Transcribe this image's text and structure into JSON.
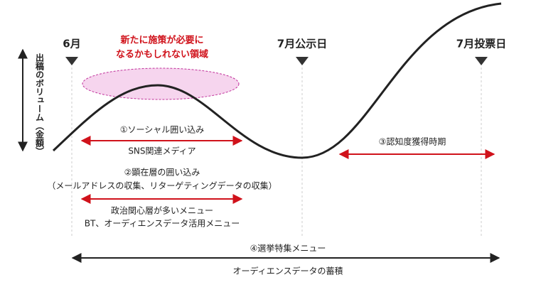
{
  "markers": [
    {
      "label": "6月"
    },
    {
      "label": "7月公示日"
    },
    {
      "label": "7月投票日"
    }
  ],
  "y_axis_label": "出稿のボリューム（金額）",
  "annotation": {
    "lines": [
      "新たに施策が必要に",
      "なるかもしれない領域"
    ]
  },
  "phases": [
    {
      "title": "①ソーシャル囲い込み",
      "detail": "SNS関連メディア"
    },
    {
      "title": "②顕在層の囲い込み",
      "subtitle": "（メールアドレスの収集、リターゲティングデータの収集）",
      "details": [
        "政治関心層が多いメニュー",
        "BT、オーディエンスデータ活用メニュー"
      ]
    },
    {
      "title": "③認知度獲得時期"
    },
    {
      "title": "④選挙特集メニュー",
      "detail": "オーディエンスデータの蓄積"
    }
  ]
}
